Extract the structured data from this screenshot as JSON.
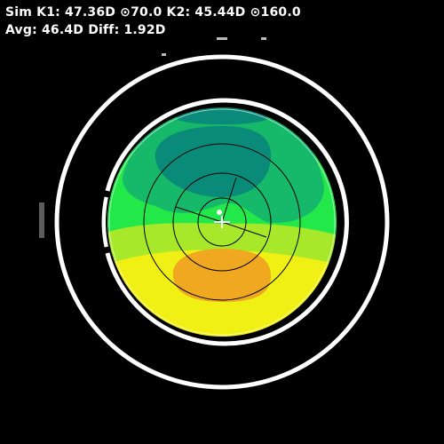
{
  "readout": {
    "line1": "Sim K1: 47.36D ⊙70.0 K2: 45.44D ⊙160.0",
    "line2": "Avg: 46.4D Diff: 1.92D"
  },
  "colors": {
    "background": "#000000",
    "ring": "#ffffff",
    "teal": "#0a8a78",
    "green_dark": "#16b86a",
    "green": "#22e84a",
    "yellow_green": "#a8e82a",
    "yellow": "#f0f014",
    "orange": "#f0a820",
    "grid": "#000000"
  },
  "map": {
    "k1_diopters": 47.36,
    "k1_axis_deg": 70.0,
    "k2_diopters": 45.44,
    "k2_axis_deg": 160.0,
    "avg_diopters": 46.4,
    "diff_diopters": 1.92
  }
}
